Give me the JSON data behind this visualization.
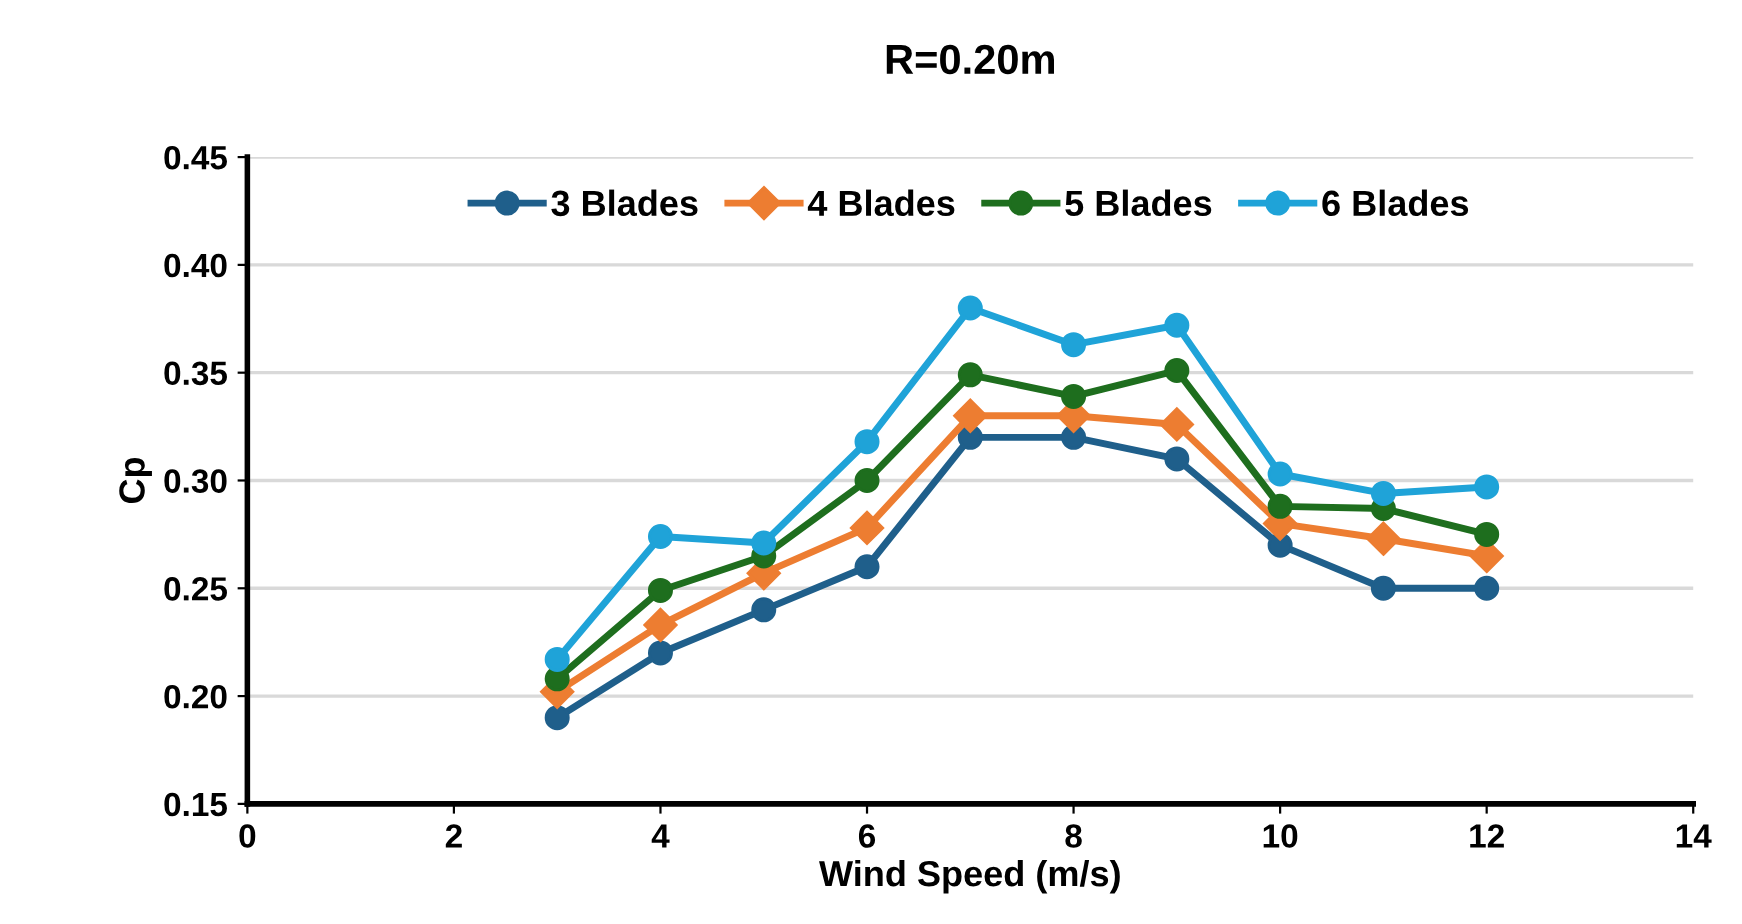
{
  "chart_data": {
    "type": "line",
    "title": "R=0.20m",
    "xlabel": "Wind Speed (m/s)",
    "ylabel": "Cp",
    "x": [
      3,
      4,
      5,
      6,
      7,
      8,
      9,
      10,
      11,
      12
    ],
    "series": [
      {
        "name": "3 Blades",
        "color": "#1f5f8b",
        "marker": "circle",
        "values": [
          0.19,
          0.22,
          0.24,
          0.26,
          0.32,
          0.32,
          0.31,
          0.27,
          0.25,
          0.25
        ]
      },
      {
        "name": "4 Blades",
        "color": "#ed7d31",
        "marker": "diamond",
        "values": [
          0.202,
          0.233,
          0.257,
          0.278,
          0.33,
          0.33,
          0.326,
          0.28,
          0.273,
          0.265
        ]
      },
      {
        "name": "5 Blades",
        "color": "#1e6e1e",
        "marker": "circle",
        "values": [
          0.208,
          0.249,
          0.265,
          0.3,
          0.349,
          0.339,
          0.351,
          0.288,
          0.287,
          0.275
        ]
      },
      {
        "name": "6 Blades",
        "color": "#1fa3d8",
        "marker": "circle",
        "values": [
          0.217,
          0.274,
          0.271,
          0.318,
          0.38,
          0.363,
          0.372,
          0.303,
          0.294,
          0.297
        ]
      }
    ],
    "xlim": [
      0,
      14
    ],
    "xticks": [
      0,
      2,
      4,
      6,
      8,
      10,
      12,
      14
    ],
    "ylim": [
      0.15,
      0.45
    ],
    "yticks": [
      {
        "value": 0.15,
        "label": "0.15"
      },
      {
        "value": 0.2,
        "label": "0.20"
      },
      {
        "value": 0.25,
        "label": "0.25"
      },
      {
        "value": 0.3,
        "label": "0.30"
      },
      {
        "value": 0.35,
        "label": "0.35"
      },
      {
        "value": 0.4,
        "label": "0.40"
      },
      {
        "value": 0.45,
        "label": "0.45"
      }
    ],
    "grid": "y",
    "legend": "top",
    "line_style": "solid"
  }
}
